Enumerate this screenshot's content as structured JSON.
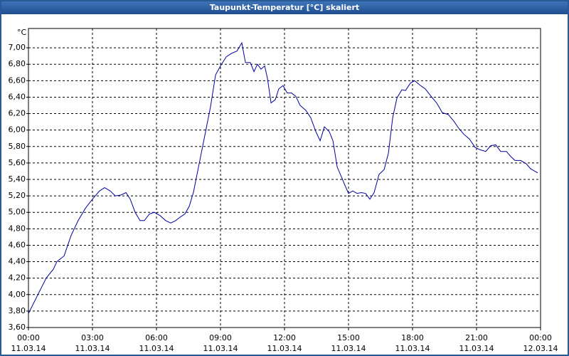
{
  "chart_data": {
    "type": "line",
    "title": "Taupunkt-Temperatur [°C] skaliert",
    "y_unit": "°C",
    "x": [
      0,
      0.5,
      0.83,
      1.17,
      1.33,
      1.67,
      2,
      2.33,
      2.67,
      3,
      3.33,
      3.57,
      3.83,
      4.07,
      4.33,
      4.57,
      4.77,
      5,
      5.23,
      5.43,
      5.67,
      5.9,
      6.17,
      6.43,
      6.67,
      6.9,
      7.1,
      7.33,
      7.53,
      7.73,
      8,
      8.27,
      8.53,
      8.77,
      9,
      9.27,
      9.5,
      9.77,
      10,
      10.17,
      10.4,
      10.57,
      10.73,
      10.9,
      11.07,
      11.2,
      11.37,
      11.57,
      11.73,
      11.93,
      12.13,
      12.33,
      12.53,
      12.73,
      13,
      13.23,
      13.47,
      13.67,
      13.87,
      14.1,
      14.27,
      14.47,
      14.67,
      14.83,
      15,
      15.2,
      15.4,
      15.6,
      15.8,
      16,
      16.2,
      16.43,
      16.67,
      16.87,
      17.07,
      17.27,
      17.5,
      17.67,
      17.9,
      18.1,
      18.33,
      18.6,
      18.87,
      19.13,
      19.4,
      19.67,
      19.93,
      20.17,
      20.4,
      20.67,
      20.93,
      21.17,
      21.43,
      21.67,
      21.9,
      22.13,
      22.4,
      22.6,
      22.8,
      23.07,
      23.33,
      23.53,
      23.73,
      23.87
    ],
    "series": [
      {
        "color": "#0000a0",
        "values": [
          3.77,
          4.03,
          4.2,
          4.31,
          4.4,
          4.47,
          4.72,
          4.9,
          5.05,
          5.16,
          5.26,
          5.3,
          5.26,
          5.2,
          5.21,
          5.24,
          5.16,
          5.0,
          4.9,
          4.9,
          4.98,
          5.0,
          4.96,
          4.9,
          4.87,
          4.9,
          4.94,
          4.98,
          5.07,
          5.24,
          5.59,
          5.94,
          6.28,
          6.67,
          6.78,
          6.89,
          6.93,
          6.96,
          7.06,
          6.82,
          6.82,
          6.71,
          6.8,
          6.74,
          6.78,
          6.63,
          6.33,
          6.37,
          6.5,
          6.54,
          6.45,
          6.45,
          6.41,
          6.3,
          6.24,
          6.15,
          5.98,
          5.87,
          6.04,
          5.98,
          5.87,
          5.55,
          5.43,
          5.33,
          5.23,
          5.26,
          5.23,
          5.24,
          5.23,
          5.16,
          5.24,
          5.46,
          5.52,
          5.72,
          6.15,
          6.39,
          6.49,
          6.48,
          6.57,
          6.6,
          6.55,
          6.5,
          6.41,
          6.33,
          6.21,
          6.19,
          6.11,
          6.02,
          5.95,
          5.89,
          5.79,
          5.76,
          5.74,
          5.81,
          5.82,
          5.74,
          5.74,
          5.68,
          5.63,
          5.63,
          5.59,
          5.53,
          5.5,
          5.48
        ]
      }
    ],
    "xlim": [
      0,
      24
    ],
    "xticks": [
      {
        "value": 0,
        "label": "00:00"
      },
      {
        "value": 3,
        "label": "03:00"
      },
      {
        "value": 6,
        "label": "06:00"
      },
      {
        "value": 9,
        "label": "09:00"
      },
      {
        "value": 12,
        "label": "12:00"
      },
      {
        "value": 15,
        "label": "15:00"
      },
      {
        "value": 18,
        "label": "18:00"
      },
      {
        "value": 21,
        "label": "21:00"
      },
      {
        "value": 24,
        "label": "00:00"
      }
    ],
    "xtick_dates": [
      "11.03.14",
      "11.03.14",
      "11.03.14",
      "11.03.14",
      "11.03.14",
      "11.03.14",
      "11.03.14",
      "11.03.14",
      "12.03.14"
    ],
    "ylim": [
      3.6,
      7.2
    ],
    "yticks": [
      {
        "value": 3.6,
        "label": "3,60"
      },
      {
        "value": 3.8,
        "label": "3,80"
      },
      {
        "value": 4.0,
        "label": "4,00"
      },
      {
        "value": 4.2,
        "label": "4,20"
      },
      {
        "value": 4.4,
        "label": "4,40"
      },
      {
        "value": 4.6,
        "label": "4,60"
      },
      {
        "value": 4.8,
        "label": "4,80"
      },
      {
        "value": 5.0,
        "label": "5,00"
      },
      {
        "value": 5.2,
        "label": "5,20"
      },
      {
        "value": 5.4,
        "label": "5,40"
      },
      {
        "value": 5.6,
        "label": "5,60"
      },
      {
        "value": 5.8,
        "label": "5,80"
      },
      {
        "value": 6.0,
        "label": "6,00"
      },
      {
        "value": 6.2,
        "label": "6,20"
      },
      {
        "value": 6.4,
        "label": "6,40"
      },
      {
        "value": 6.6,
        "label": "6,60"
      },
      {
        "value": 6.8,
        "label": "6,80"
      },
      {
        "value": 7.0,
        "label": "7,00"
      }
    ],
    "grid": true
  }
}
